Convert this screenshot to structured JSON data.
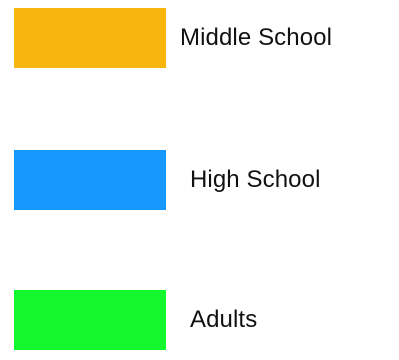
{
  "chart_data": {
    "type": "bar",
    "legend": {
      "placement": "left",
      "entries": [
        {
          "label": "Middle School",
          "color": "#F7B50E"
        },
        {
          "label": "High School",
          "color": "#1698FF"
        },
        {
          "label": "Adults",
          "color": "#12F82D"
        }
      ]
    }
  }
}
